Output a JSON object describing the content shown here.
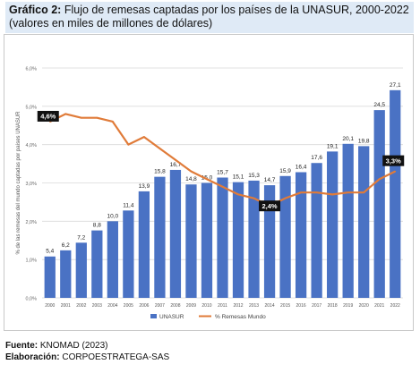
{
  "header": {
    "title_bold": "Gráfico 2:",
    "title_rest": " Flujo de remesas captadas por los países de la UNASUR, 2000-2022",
    "subtitle": "(valores en miles de millones de dólares)"
  },
  "footer": {
    "source_label": "Fuente:",
    "source_value": " KNOMAD (2023)",
    "made_label": "Elaboración:",
    "made_value": " CORPOESTRATEGA-SAS"
  },
  "colors": {
    "bar": "#4a72c4",
    "bar_dark": "#2f57a8",
    "line": "#e07b39",
    "grid": "#d9d9d9",
    "callout_bg": "#111111"
  },
  "chart_data": {
    "type": "bar",
    "categories": [
      "2000",
      "2001",
      "2002",
      "2003",
      "2004",
      "2005",
      "2006",
      "2007",
      "2008",
      "2009",
      "2010",
      "2011",
      "2012",
      "2013",
      "2014",
      "2015",
      "2016",
      "2017",
      "2018",
      "2019",
      "2020",
      "2021",
      "2022"
    ],
    "bar_labels": [
      "5,4",
      "6,2",
      "7,2",
      "8,8",
      "10,0",
      "11,4",
      "13,9",
      "15,8",
      "16,7",
      "14,8",
      "15,0",
      "15,7",
      "15,1",
      "15,3",
      "14,7",
      "15,9",
      "16,4",
      "17,6",
      "19,1",
      "20,1",
      "19,8",
      "24,5",
      "27,1"
    ],
    "series": [
      {
        "name": "UNASUR",
        "kind": "bar",
        "values": [
          5.4,
          6.2,
          7.2,
          8.8,
          10.0,
          11.4,
          13.9,
          15.8,
          16.7,
          14.8,
          15.0,
          15.7,
          15.1,
          15.3,
          14.7,
          15.9,
          16.4,
          17.6,
          19.1,
          20.1,
          19.8,
          24.5,
          27.1
        ]
      },
      {
        "name": "% Remesas Mundo",
        "kind": "line",
        "values": [
          4.6,
          4.8,
          4.7,
          4.7,
          4.6,
          4.0,
          4.2,
          3.9,
          3.6,
          3.3,
          3.1,
          2.9,
          2.7,
          2.6,
          2.4,
          2.6,
          2.75,
          2.75,
          2.7,
          2.75,
          2.75,
          3.1,
          3.3
        ]
      }
    ],
    "callouts": [
      {
        "index": 0,
        "text": "4,6%"
      },
      {
        "index": 14,
        "text": "2,4%"
      },
      {
        "index": 22,
        "text": "3,3%"
      }
    ],
    "ylabel": "% de las remesas del mundo captadas por países UNASUR",
    "yticks": [
      "0,0%",
      "1,0%",
      "2,0%",
      "3,0%",
      "4,0%",
      "5,0%",
      "6,0%"
    ],
    "ylim": [
      0,
      6
    ],
    "bar_scale_max": 30,
    "grid": true,
    "legend_position": "bottom"
  }
}
